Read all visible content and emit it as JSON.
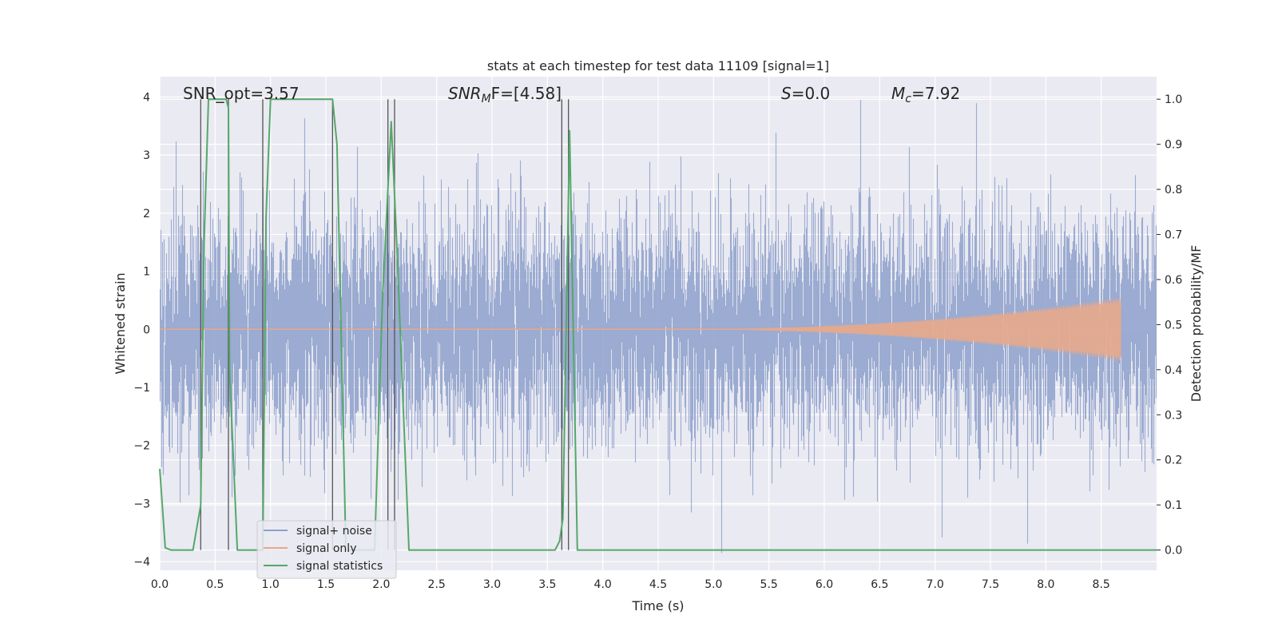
{
  "chart_data": {
    "type": "line",
    "title": "stats at each timestep for test data 11109 [signal=1]",
    "xlabel": "Time (s)",
    "ylabel": "Whitened strain",
    "y2label": "Detection probability/MF",
    "xlim": [
      0,
      9.0
    ],
    "ylim": [
      -4.15,
      4.35
    ],
    "y2lim": [
      -0.045,
      1.05
    ],
    "xticks": [
      0.0,
      0.5,
      1.0,
      1.5,
      2.0,
      2.5,
      3.0,
      3.5,
      4.0,
      4.5,
      5.0,
      5.5,
      6.0,
      6.5,
      7.0,
      7.5,
      8.0,
      8.5
    ],
    "xtick_labels": [
      "0.0",
      "0.5",
      "1.0",
      "1.5",
      "2.0",
      "2.5",
      "3.0",
      "3.5",
      "4.0",
      "4.5",
      "5.0",
      "5.5",
      "6.0",
      "6.5",
      "7.0",
      "7.5",
      "8.0",
      "8.5"
    ],
    "yticks": [
      -4,
      -3,
      -2,
      -1,
      0,
      1,
      2,
      3,
      4
    ],
    "ytick_labels": [
      "−4",
      "−3",
      "−2",
      "−1",
      "0",
      "1",
      "2",
      "3",
      "4"
    ],
    "y2ticks": [
      0.0,
      0.1,
      0.2,
      0.3,
      0.4,
      0.5,
      0.6,
      0.7,
      0.8,
      0.9,
      1.0
    ],
    "y2tick_labels": [
      "0.0",
      "0.1",
      "0.2",
      "0.3",
      "0.4",
      "0.5",
      "0.6",
      "0.7",
      "0.8",
      "0.9",
      "1.0"
    ],
    "grid": true,
    "legend_position": "lower-left",
    "annotations": {
      "snr_opt": "SNR_opt=3.57",
      "snr_mf_prefix": "SNR",
      "snr_mf_sub": "M",
      "snr_mf_suffix": "F=[4.58]",
      "s_var": "S",
      "s_value": "=0.0",
      "mc_var": "M",
      "mc_sub": "c",
      "mc_value": "=7.92"
    },
    "series": [
      {
        "name": "signal+ noise",
        "color": "#8da0cb",
        "kind": "noise",
        "duration": 9.0,
        "amplitude_std": 0.95,
        "peak_range": [
          -3.85,
          3.95
        ]
      },
      {
        "name": "signal only",
        "color": "#e8a98b",
        "kind": "chirp",
        "start": 4.5,
        "end": 8.68,
        "max_amplitude": 0.55
      },
      {
        "name": "signal statistics",
        "color": "#55a868",
        "axis": "right",
        "x": [
          0.0,
          0.05,
          0.1,
          0.3,
          0.37,
          0.4,
          0.44,
          0.6,
          0.62,
          0.63,
          0.7,
          0.93,
          0.96,
          1.0,
          1.56,
          1.6,
          1.68,
          1.94,
          2.01,
          2.09,
          2.14,
          2.25,
          3.57,
          3.61,
          3.64,
          3.7,
          3.77,
          3.85,
          9.0
        ],
        "y": [
          0.18,
          0.005,
          0.0,
          0.0,
          0.1,
          0.68,
          1.0,
          1.0,
          0.98,
          0.4,
          0.0,
          0.0,
          0.74,
          1.0,
          1.0,
          0.9,
          0.0,
          0.0,
          0.55,
          0.95,
          0.68,
          0.0,
          0.0,
          0.02,
          0.07,
          0.93,
          0.0,
          0.0,
          0.0
        ]
      }
    ],
    "vertical_markers": [
      0.37,
      0.62,
      0.93,
      1.56,
      2.06,
      2.12,
      3.63,
      3.69
    ]
  }
}
